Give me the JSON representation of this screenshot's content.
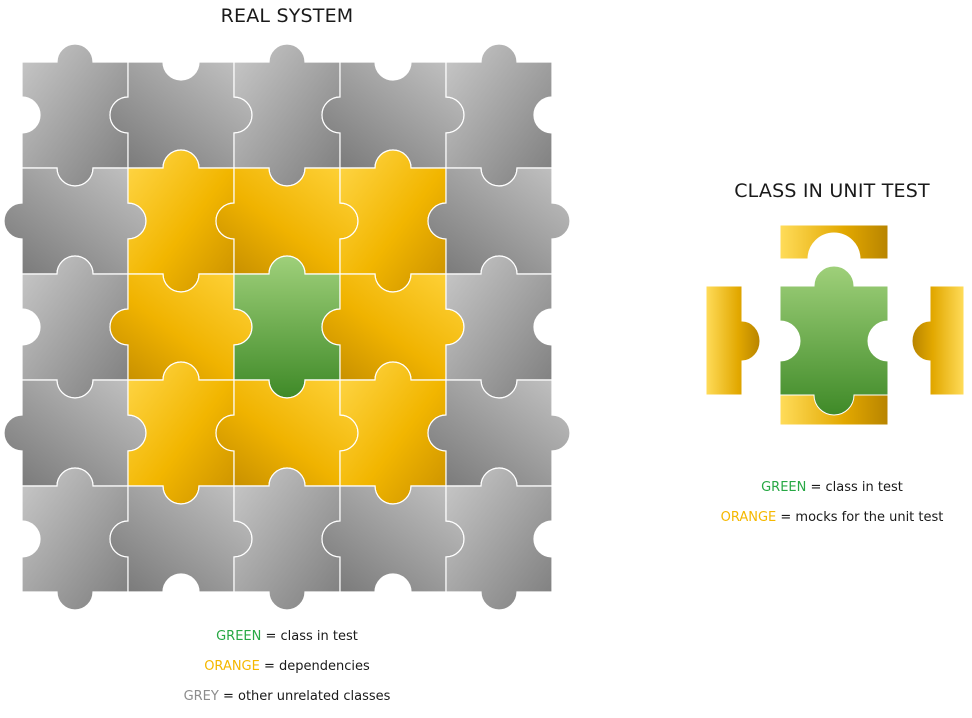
{
  "real_system": {
    "title": "REAL SYSTEM",
    "grid": [
      [
        "grey",
        "grey",
        "grey",
        "grey",
        "grey"
      ],
      [
        "grey",
        "orange",
        "orange",
        "orange",
        "grey"
      ],
      [
        "grey",
        "orange",
        "green",
        "orange",
        "grey"
      ],
      [
        "grey",
        "orange",
        "orange",
        "orange",
        "grey"
      ],
      [
        "grey",
        "grey",
        "grey",
        "grey",
        "grey"
      ]
    ]
  },
  "unit_test": {
    "title": "CLASS IN UNIT TEST"
  },
  "legend_left": [
    {
      "key": "GREEN",
      "text": " = class in test",
      "color": "#27a844"
    },
    {
      "key": "ORANGE",
      "text": " = dependencies",
      "color": "#f5b800"
    },
    {
      "key": "GREY",
      "text": " = other unrelated classes",
      "color": "#8c8c8c"
    }
  ],
  "legend_right": [
    {
      "key": "GREEN",
      "text": " = class in test",
      "color": "#27a844"
    },
    {
      "key": "ORANGE",
      "text": " = mocks for the unit test",
      "color": "#f5b800"
    }
  ],
  "colors": {
    "green": "#5aa63c",
    "orange": "#f5b800",
    "grey": "#9a9a9a"
  }
}
